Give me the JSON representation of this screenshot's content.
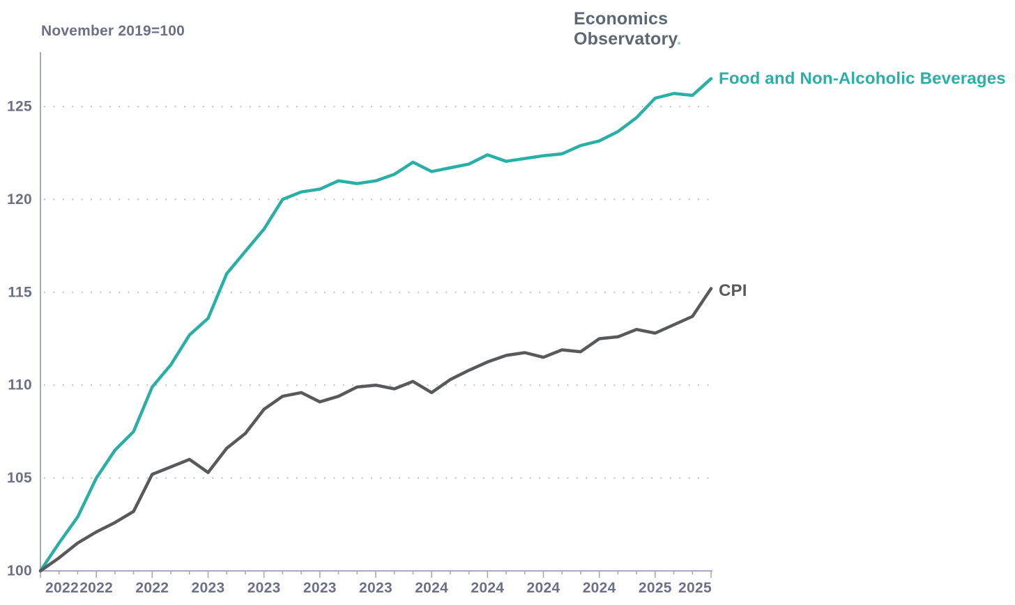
{
  "header": {
    "subtitle": "November 2019=100",
    "logo_line1": "Economics",
    "logo_line2": "Observatory",
    "logo_dot": "."
  },
  "colors": {
    "food_line": "#29AFA5",
    "cpi_line": "#58595B",
    "axis": "#A6A8C0",
    "grid_dots": "#C2C4CD",
    "tick_text": "#6B7086",
    "logo_text": "#5C6771",
    "logo_dot": "#8FD0EB"
  },
  "chart_data": {
    "type": "line",
    "title": "",
    "subtitle": "November 2019=100",
    "xlabel": "",
    "ylabel": "",
    "ylim": [
      100,
      127.5
    ],
    "y_ticks": [
      100,
      105,
      110,
      115,
      120,
      125
    ],
    "grid": "horizontal dotted gridlines at 105-125, none at 100",
    "legend_position": "labels at right end of each line",
    "x_points": 37,
    "x_major_tick_every_points": 3,
    "x_minor_ticks": "monthly",
    "x_tick_labels": [
      "2022",
      "2022",
      "2022",
      "2023",
      "2023",
      "2023",
      "2023",
      "2024",
      "2024",
      "2024",
      "2024",
      "2025",
      "2025"
    ],
    "series": [
      {
        "name": "Food and Non-Alcoholic Beverages",
        "color": "#29AFA5",
        "values": [
          100.0,
          101.5,
          102.9,
          105.0,
          106.5,
          107.5,
          109.9,
          111.1,
          112.7,
          113.6,
          116.0,
          117.2,
          118.4,
          120.0,
          120.4,
          120.55,
          121.0,
          120.85,
          121.0,
          121.35,
          122.0,
          121.5,
          121.7,
          121.9,
          122.4,
          122.05,
          122.2,
          122.35,
          122.45,
          122.9,
          123.15,
          123.65,
          124.4,
          125.45,
          125.7,
          125.6,
          126.5
        ]
      },
      {
        "name": "CPI",
        "color": "#58595B",
        "values": [
          100.0,
          100.7,
          101.5,
          102.1,
          102.6,
          103.2,
          105.2,
          105.6,
          106.0,
          105.3,
          106.6,
          107.4,
          108.7,
          109.4,
          109.6,
          109.1,
          109.4,
          109.9,
          110.0,
          109.8,
          110.2,
          109.6,
          110.3,
          110.8,
          111.25,
          111.6,
          111.75,
          111.5,
          111.9,
          111.8,
          112.5,
          112.6,
          113.0,
          112.8,
          113.25,
          113.7,
          115.2
        ]
      }
    ]
  }
}
